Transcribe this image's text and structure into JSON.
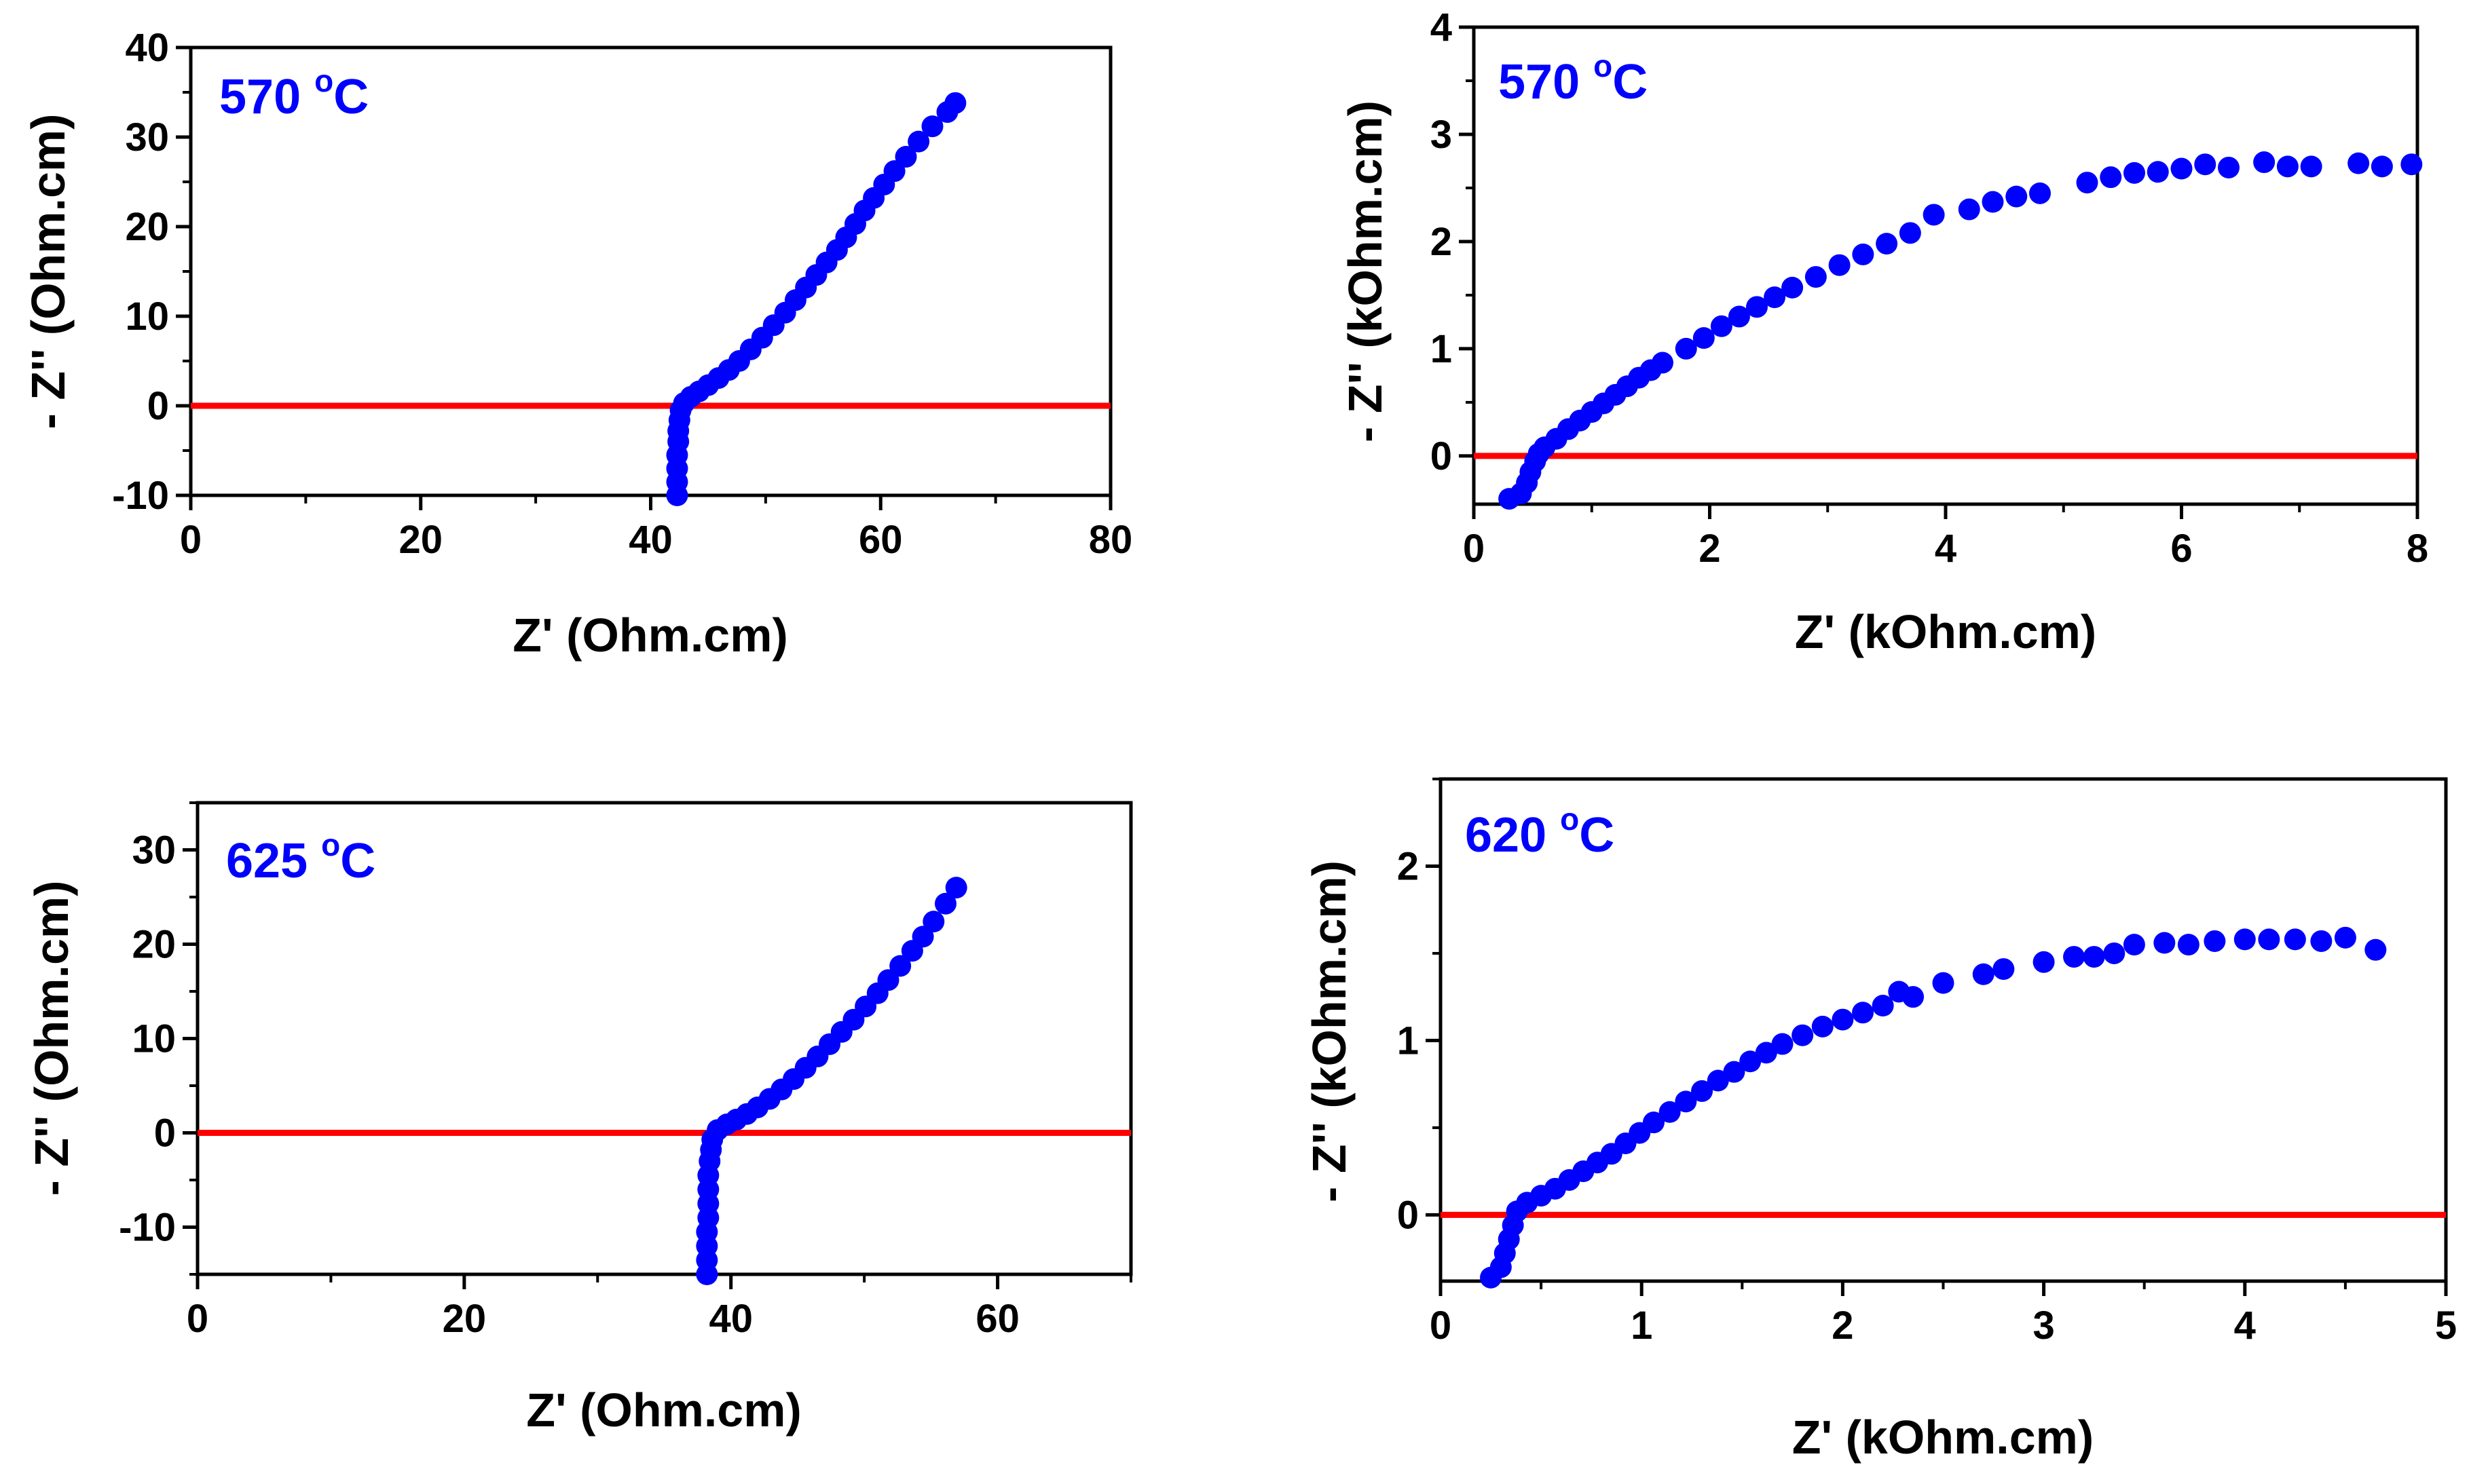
{
  "chart_data": [
    {
      "type": "scatter",
      "id": "p1",
      "annotation": "570 °C",
      "annotation_main": "570 ",
      "annotation_sup": "o",
      "annotation_unit": "C",
      "xlabel": "Z' (Ohm.cm)",
      "ylabel": "- Z'' (Ohm.cm)",
      "xlim": [
        0,
        80
      ],
      "ylim": [
        -10,
        40
      ],
      "xticks": [
        0,
        20,
        40,
        60,
        80
      ],
      "yticks": [
        -10,
        0,
        10,
        20,
        30,
        40
      ],
      "x_minor_step": 10,
      "y_minor_step": 5,
      "reference_line": {
        "y": 0,
        "x_start": 0,
        "x_end": 80
      },
      "series": [
        {
          "name": "570 °C",
          "color": "#0000ff",
          "points": [
            [
              42.3,
              -10
            ],
            [
              42.3,
              -8.5
            ],
            [
              42.3,
              -7
            ],
            [
              42.3,
              -5.5
            ],
            [
              42.4,
              -4
            ],
            [
              42.4,
              -2.8
            ],
            [
              42.5,
              -1.6
            ],
            [
              42.6,
              -0.5
            ],
            [
              42.9,
              0.3
            ],
            [
              43.5,
              1
            ],
            [
              44.2,
              1.6
            ],
            [
              45,
              2.3
            ],
            [
              45.9,
              3.1
            ],
            [
              46.8,
              4
            ],
            [
              47.7,
              5
            ],
            [
              48.7,
              6.3
            ],
            [
              49.7,
              7.6
            ],
            [
              50.7,
              9
            ],
            [
              51.7,
              10.4
            ],
            [
              52.6,
              11.8
            ],
            [
              53.5,
              13.2
            ],
            [
              54.4,
              14.6
            ],
            [
              55.3,
              16
            ],
            [
              56.2,
              17.4
            ],
            [
              57,
              18.8
            ],
            [
              57.8,
              20.3
            ],
            [
              58.6,
              21.8
            ],
            [
              59.4,
              23.2
            ],
            [
              60.3,
              24.7
            ],
            [
              61.2,
              26.2
            ],
            [
              62.2,
              27.8
            ],
            [
              63.3,
              29.5
            ],
            [
              64.5,
              31.2
            ],
            [
              65.8,
              32.8
            ],
            [
              66.5,
              33.8
            ]
          ]
        }
      ],
      "line_color": "#ff0000",
      "annotation_color": "#0000ff"
    },
    {
      "type": "scatter",
      "id": "p2",
      "annotation": "570 °C",
      "annotation_main": "570 ",
      "annotation_sup": "o",
      "annotation_unit": "C",
      "xlabel": "Z' (kOhm.cm)",
      "ylabel": "- Z'' (kOhm.cm)",
      "xlim": [
        0,
        8
      ],
      "ylim": [
        -0.45,
        4
      ],
      "xticks": [
        0,
        2,
        4,
        6,
        8
      ],
      "yticks": [
        0,
        1,
        2,
        3,
        4
      ],
      "x_minor_step": 1,
      "y_minor_step": 0.5,
      "reference_line": {
        "y": 0,
        "x_start": 0,
        "x_end": 8
      },
      "series": [
        {
          "name": "570 °C",
          "color": "#0000ff",
          "points": [
            [
              0.3,
              -0.4
            ],
            [
              0.4,
              -0.35
            ],
            [
              0.45,
              -0.25
            ],
            [
              0.48,
              -0.15
            ],
            [
              0.52,
              -0.05
            ],
            [
              0.55,
              0.02
            ],
            [
              0.6,
              0.08
            ],
            [
              0.7,
              0.16
            ],
            [
              0.8,
              0.25
            ],
            [
              0.9,
              0.33
            ],
            [
              1.0,
              0.41
            ],
            [
              1.1,
              0.49
            ],
            [
              1.2,
              0.57
            ],
            [
              1.3,
              0.65
            ],
            [
              1.4,
              0.73
            ],
            [
              1.5,
              0.8
            ],
            [
              1.6,
              0.87
            ],
            [
              1.8,
              1.0
            ],
            [
              1.95,
              1.1
            ],
            [
              2.1,
              1.21
            ],
            [
              2.25,
              1.3
            ],
            [
              2.4,
              1.39
            ],
            [
              2.55,
              1.48
            ],
            [
              2.7,
              1.57
            ],
            [
              2.9,
              1.67
            ],
            [
              3.1,
              1.78
            ],
            [
              3.3,
              1.88
            ],
            [
              3.5,
              1.98
            ],
            [
              3.7,
              2.08
            ],
            [
              3.9,
              2.25
            ],
            [
              4.2,
              2.3
            ],
            [
              4.4,
              2.37
            ],
            [
              4.6,
              2.42
            ],
            [
              4.8,
              2.45
            ],
            [
              5.2,
              2.55
            ],
            [
              5.4,
              2.6
            ],
            [
              5.6,
              2.64
            ],
            [
              5.8,
              2.65
            ],
            [
              6.0,
              2.68
            ],
            [
              6.2,
              2.72
            ],
            [
              6.4,
              2.69
            ],
            [
              6.7,
              2.74
            ],
            [
              6.9,
              2.7
            ],
            [
              7.1,
              2.7
            ],
            [
              7.5,
              2.73
            ],
            [
              7.7,
              2.7
            ],
            [
              7.95,
              2.72
            ]
          ]
        }
      ],
      "line_color": "#ff0000",
      "annotation_color": "#0000ff"
    },
    {
      "type": "scatter",
      "id": "p3",
      "annotation": "625 °C",
      "annotation_main": "625 ",
      "annotation_sup": "o",
      "annotation_unit": "C",
      "xlabel": "Z' (Ohm.cm)",
      "ylabel": "- Z'' (Ohm.cm)",
      "xlim": [
        0,
        70
      ],
      "ylim": [
        -15,
        35
      ],
      "xticks": [
        0,
        20,
        40,
        60
      ],
      "yticks": [
        -10,
        0,
        10,
        20,
        30
      ],
      "x_minor_step": 10,
      "y_minor_step": 5,
      "reference_line": {
        "y": 0,
        "x_start": 0,
        "x_end": 70
      },
      "series": [
        {
          "name": "625 °C",
          "color": "#0000ff",
          "points": [
            [
              38.2,
              -15
            ],
            [
              38.2,
              -13.5
            ],
            [
              38.2,
              -12
            ],
            [
              38.2,
              -10.5
            ],
            [
              38.3,
              -9
            ],
            [
              38.3,
              -7.5
            ],
            [
              38.3,
              -6
            ],
            [
              38.3,
              -4.5
            ],
            [
              38.4,
              -3
            ],
            [
              38.5,
              -1.8
            ],
            [
              38.6,
              -0.7
            ],
            [
              39,
              0.3
            ],
            [
              39.7,
              0.9
            ],
            [
              40.4,
              1.4
            ],
            [
              41.2,
              2
            ],
            [
              42,
              2.7
            ],
            [
              42.9,
              3.6
            ],
            [
              43.8,
              4.6
            ],
            [
              44.7,
              5.7
            ],
            [
              45.6,
              6.9
            ],
            [
              46.5,
              8.1
            ],
            [
              47.4,
              9.4
            ],
            [
              48.3,
              10.7
            ],
            [
              49.2,
              12
            ],
            [
              50.1,
              13.4
            ],
            [
              51,
              14.8
            ],
            [
              51.8,
              16.2
            ],
            [
              52.7,
              17.7
            ],
            [
              53.6,
              19.3
            ],
            [
              54.4,
              20.8
            ],
            [
              55.2,
              22.4
            ],
            [
              56.1,
              24.3
            ],
            [
              56.9,
              26
            ]
          ]
        }
      ],
      "line_color": "#ff0000",
      "annotation_color": "#0000ff"
    },
    {
      "type": "scatter",
      "id": "p4",
      "annotation": "620 °C",
      "annotation_main": "620 ",
      "annotation_sup": "o",
      "annotation_unit": "C",
      "xlabel": "Z' (kOhm.cm)",
      "ylabel": "- Z'' (kOhm.cm)",
      "xlim": [
        0,
        5
      ],
      "ylim": [
        -0.38,
        2.5
      ],
      "xticks": [
        0,
        1,
        2,
        3,
        4,
        5
      ],
      "yticks": [
        0,
        1,
        2
      ],
      "x_minor_step": 0.5,
      "y_minor_step": 0.5,
      "reference_line": {
        "y": 0,
        "x_start": 0,
        "x_end": 5
      },
      "series": [
        {
          "name": "620 °C",
          "color": "#0000ff",
          "points": [
            [
              0.25,
              -0.36
            ],
            [
              0.3,
              -0.3
            ],
            [
              0.32,
              -0.22
            ],
            [
              0.34,
              -0.14
            ],
            [
              0.36,
              -0.06
            ],
            [
              0.38,
              0.02
            ],
            [
              0.43,
              0.07
            ],
            [
              0.5,
              0.11
            ],
            [
              0.57,
              0.15
            ],
            [
              0.64,
              0.2
            ],
            [
              0.71,
              0.25
            ],
            [
              0.78,
              0.3
            ],
            [
              0.85,
              0.35
            ],
            [
              0.92,
              0.41
            ],
            [
              0.99,
              0.47
            ],
            [
              1.06,
              0.53
            ],
            [
              1.14,
              0.59
            ],
            [
              1.22,
              0.65
            ],
            [
              1.3,
              0.71
            ],
            [
              1.38,
              0.77
            ],
            [
              1.46,
              0.82
            ],
            [
              1.54,
              0.88
            ],
            [
              1.62,
              0.93
            ],
            [
              1.7,
              0.98
            ],
            [
              1.8,
              1.03
            ],
            [
              1.9,
              1.08
            ],
            [
              2.0,
              1.12
            ],
            [
              2.1,
              1.16
            ],
            [
              2.2,
              1.2
            ],
            [
              2.28,
              1.28
            ],
            [
              2.35,
              1.25
            ],
            [
              2.5,
              1.33
            ],
            [
              2.7,
              1.38
            ],
            [
              2.8,
              1.41
            ],
            [
              3.0,
              1.45
            ],
            [
              3.15,
              1.48
            ],
            [
              3.25,
              1.48
            ],
            [
              3.35,
              1.5
            ],
            [
              3.45,
              1.55
            ],
            [
              3.6,
              1.56
            ],
            [
              3.72,
              1.55
            ],
            [
              3.85,
              1.57
            ],
            [
              4.0,
              1.58
            ],
            [
              4.12,
              1.58
            ],
            [
              4.25,
              1.58
            ],
            [
              4.38,
              1.57
            ],
            [
              4.5,
              1.59
            ],
            [
              4.65,
              1.52
            ]
          ]
        }
      ],
      "line_color": "#ff0000",
      "annotation_color": "#0000ff"
    }
  ]
}
